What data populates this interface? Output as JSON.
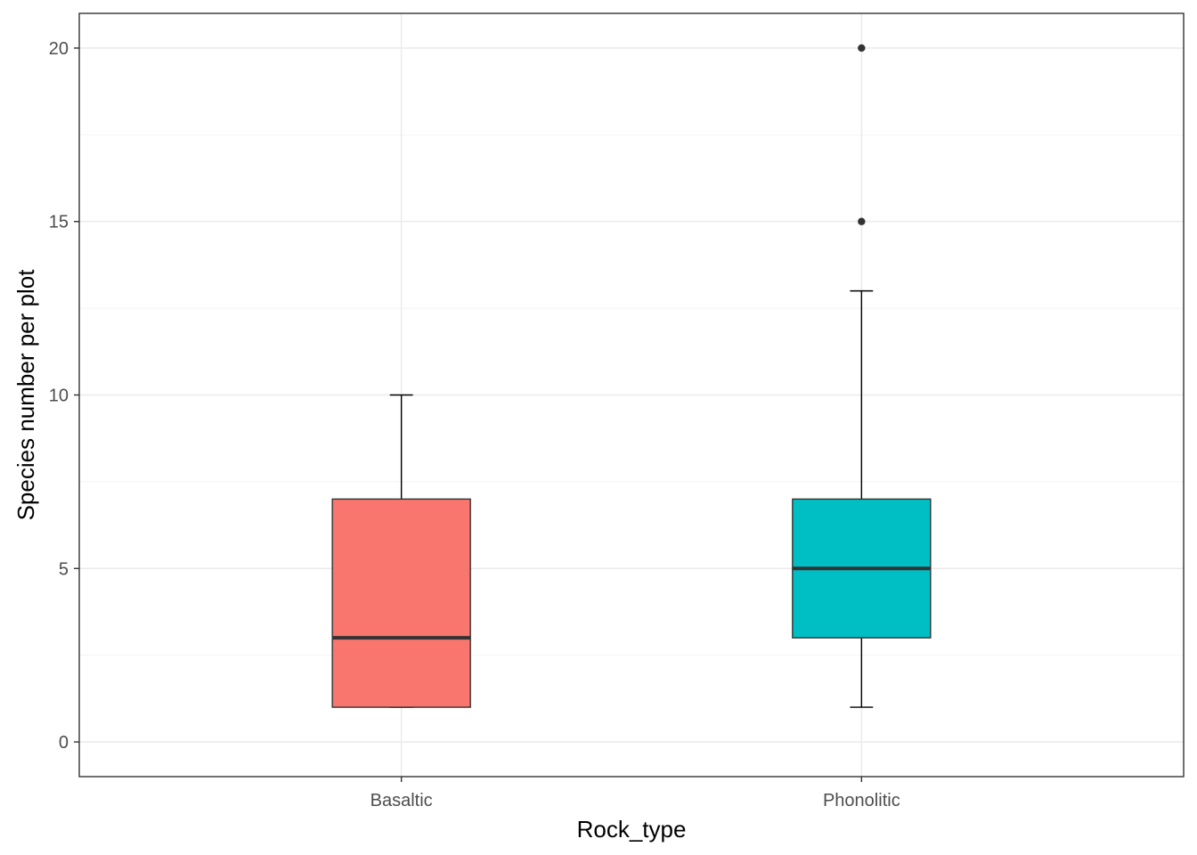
{
  "chart_data": {
    "type": "boxplot",
    "title": "",
    "xlabel": "Rock_type",
    "ylabel": "Species number per plot",
    "ylim": [
      -1,
      21
    ],
    "y_ticks": [
      0,
      5,
      10,
      15,
      20
    ],
    "y_tick_labels": [
      "0",
      "5",
      "10",
      "15",
      "20"
    ],
    "grid": true,
    "legend": "none",
    "categories": [
      "Basaltic",
      "Phonolitic"
    ],
    "series": [
      {
        "category": "Basaltic",
        "whisker_low": 1,
        "q1": 1,
        "median": 3,
        "q3": 7,
        "whisker_high": 10,
        "outliers": [],
        "color": "#F8766D"
      },
      {
        "category": "Phonolitic",
        "whisker_low": 1,
        "q1": 3,
        "median": 5,
        "q3": 7,
        "whisker_high": 13,
        "outliers": [
          15,
          20
        ],
        "color": "#00BFC4"
      }
    ]
  }
}
